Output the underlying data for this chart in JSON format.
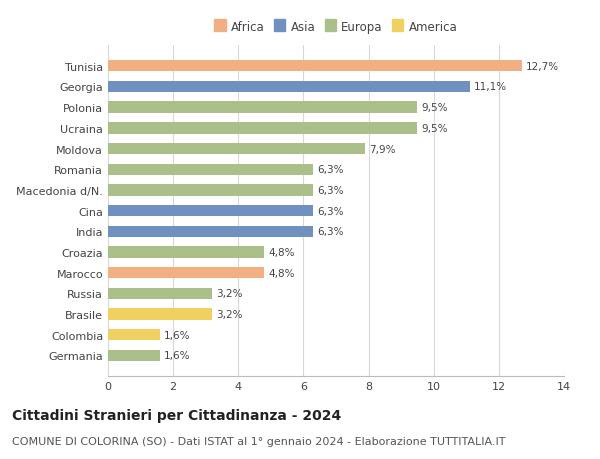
{
  "countries": [
    "Tunisia",
    "Georgia",
    "Polonia",
    "Ucraina",
    "Moldova",
    "Romania",
    "Macedonia d/N.",
    "Cina",
    "India",
    "Croazia",
    "Marocco",
    "Russia",
    "Brasile",
    "Colombia",
    "Germania"
  ],
  "values": [
    12.7,
    11.1,
    9.5,
    9.5,
    7.9,
    6.3,
    6.3,
    6.3,
    6.3,
    4.8,
    4.8,
    3.2,
    3.2,
    1.6,
    1.6
  ],
  "labels": [
    "12,7%",
    "11,1%",
    "9,5%",
    "9,5%",
    "7,9%",
    "6,3%",
    "6,3%",
    "6,3%",
    "6,3%",
    "4,8%",
    "4,8%",
    "3,2%",
    "3,2%",
    "1,6%",
    "1,6%"
  ],
  "continents": [
    "Africa",
    "Asia",
    "Europa",
    "Europa",
    "Europa",
    "Europa",
    "Europa",
    "Asia",
    "Asia",
    "Europa",
    "Africa",
    "Europa",
    "America",
    "America",
    "Europa"
  ],
  "colors": {
    "Africa": "#F2AF82",
    "Asia": "#7090C0",
    "Europa": "#AABF8A",
    "America": "#F0D060"
  },
  "legend_order": [
    "Africa",
    "Asia",
    "Europa",
    "America"
  ],
  "xlim": [
    0,
    14
  ],
  "xticks": [
    0,
    2,
    4,
    6,
    8,
    10,
    12,
    14
  ],
  "title": "Cittadini Stranieri per Cittadinanza - 2024",
  "subtitle": "COMUNE DI COLORINA (SO) - Dati ISTAT al 1° gennaio 2024 - Elaborazione TUTTITALIA.IT",
  "bg_color": "#ffffff",
  "grid_color": "#d8d8d8",
  "bar_height": 0.55,
  "title_fontsize": 10,
  "subtitle_fontsize": 8,
  "label_fontsize": 7.5,
  "tick_fontsize": 8,
  "legend_fontsize": 8.5
}
